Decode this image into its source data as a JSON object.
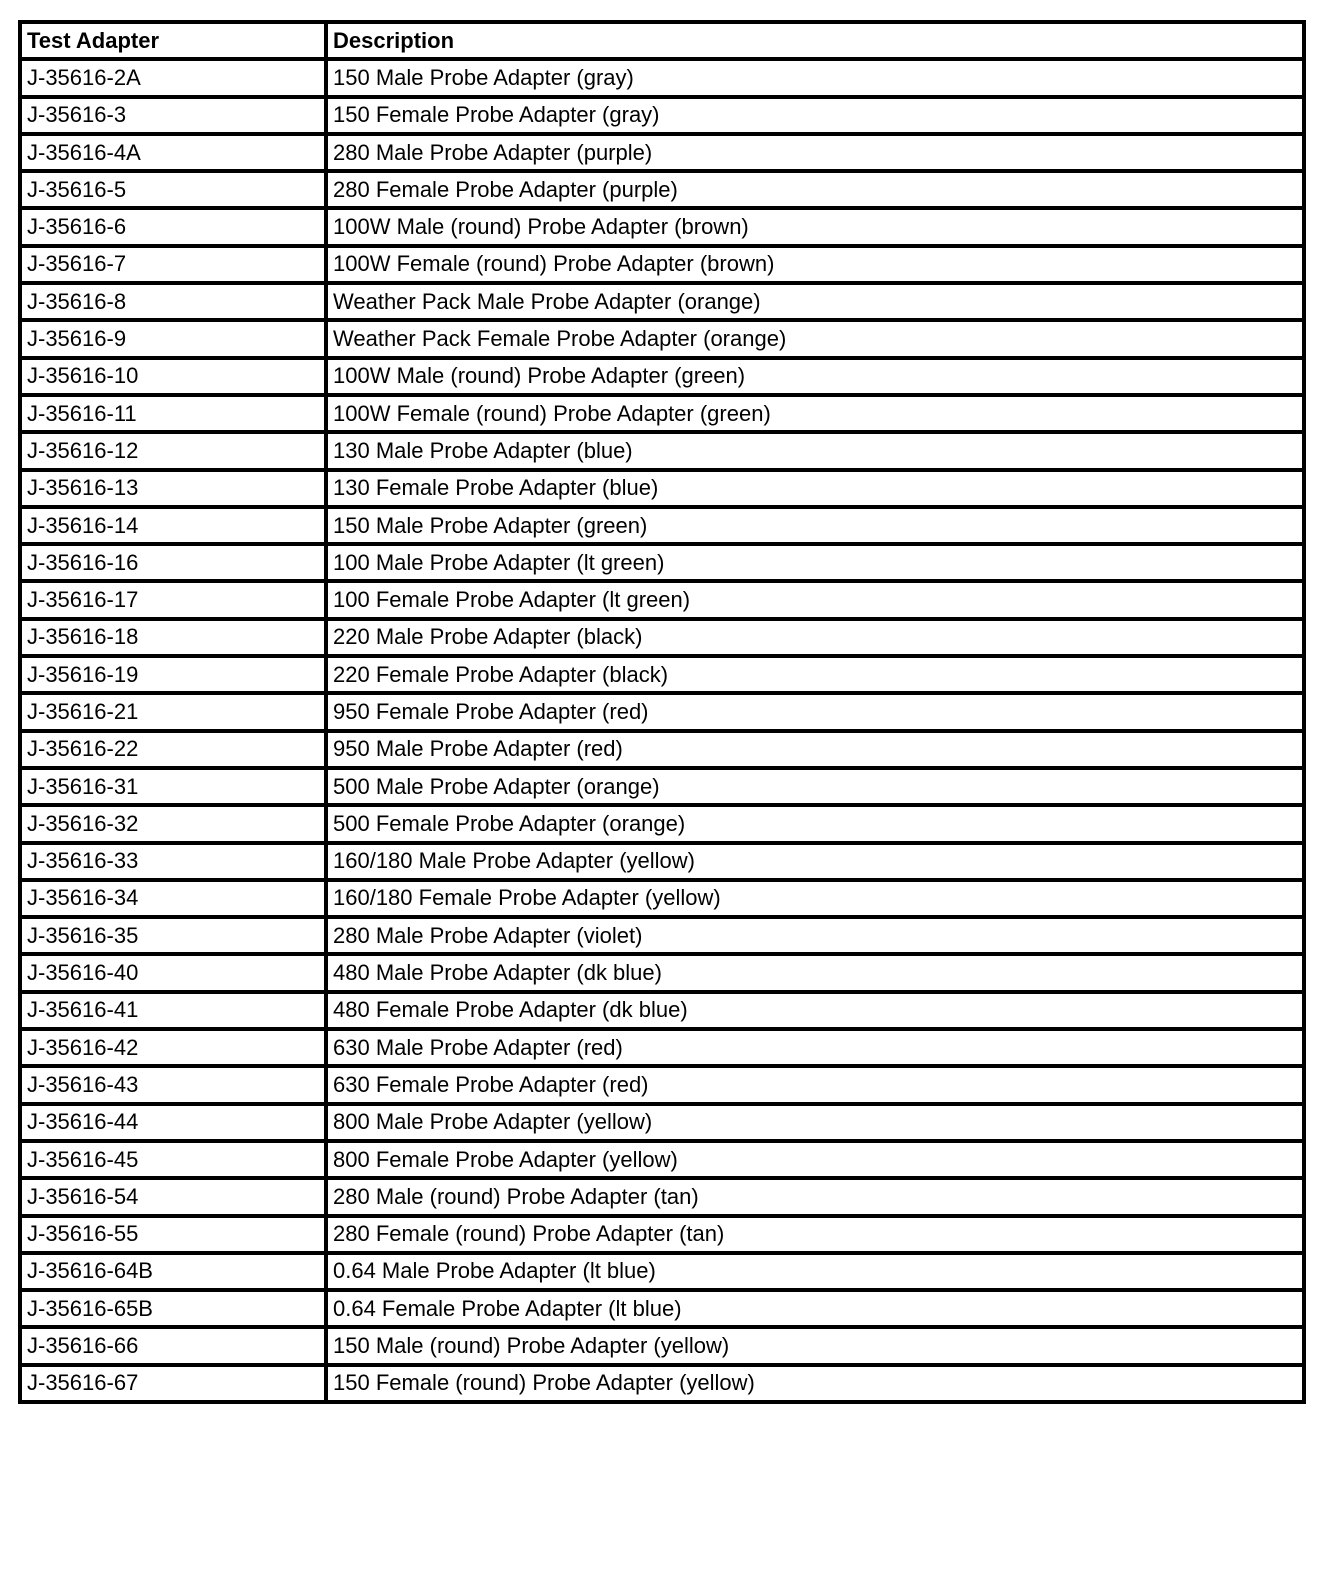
{
  "table": {
    "headers": [
      "Test Adapter",
      "Description"
    ],
    "rows": [
      [
        "J-35616-2A",
        "150 Male Probe Adapter (gray)"
      ],
      [
        "J-35616-3",
        "150 Female Probe Adapter (gray)"
      ],
      [
        "J-35616-4A",
        "280 Male Probe Adapter (purple)"
      ],
      [
        "J-35616-5",
        "280 Female Probe Adapter (purple)"
      ],
      [
        "J-35616-6",
        "100W Male (round) Probe Adapter (brown)"
      ],
      [
        "J-35616-7",
        "100W Female (round) Probe Adapter (brown)"
      ],
      [
        "J-35616-8",
        "Weather Pack Male Probe Adapter (orange)"
      ],
      [
        "J-35616-9",
        "Weather Pack Female Probe Adapter (orange)"
      ],
      [
        "J-35616-10",
        "100W Male (round) Probe Adapter (green)"
      ],
      [
        "J-35616-11",
        "100W Female (round) Probe Adapter (green)"
      ],
      [
        "J-35616-12",
        "130 Male Probe Adapter (blue)"
      ],
      [
        "J-35616-13",
        "130 Female Probe Adapter (blue)"
      ],
      [
        "J-35616-14",
        "150 Male Probe Adapter (green)"
      ],
      [
        "J-35616-16",
        "100 Male Probe Adapter (lt green)"
      ],
      [
        "J-35616-17",
        "100 Female Probe Adapter (lt green)"
      ],
      [
        "J-35616-18",
        "220 Male Probe Adapter (black)"
      ],
      [
        "J-35616-19",
        "220 Female Probe Adapter (black)"
      ],
      [
        "J-35616-21",
        "950 Female Probe Adapter (red)"
      ],
      [
        "J-35616-22",
        "950 Male Probe Adapter (red)"
      ],
      [
        "J-35616-31",
        "500 Male Probe Adapter (orange)"
      ],
      [
        "J-35616-32",
        "500 Female Probe Adapter (orange)"
      ],
      [
        "J-35616-33",
        "160/180 Male Probe Adapter (yellow)"
      ],
      [
        "J-35616-34",
        "160/180 Female Probe Adapter (yellow)"
      ],
      [
        "J-35616-35",
        "280 Male Probe Adapter (violet)"
      ],
      [
        "J-35616-40",
        "480 Male Probe Adapter (dk blue)"
      ],
      [
        "J-35616-41",
        "480 Female Probe Adapter (dk blue)"
      ],
      [
        "J-35616-42",
        "630 Male Probe Adapter (red)"
      ],
      [
        "J-35616-43",
        "630 Female Probe Adapter (red)"
      ],
      [
        "J-35616-44",
        "800 Male Probe Adapter (yellow)"
      ],
      [
        "J-35616-45",
        "800 Female Probe Adapter (yellow)"
      ],
      [
        "J-35616-54",
        "280 Male (round) Probe Adapter (tan)"
      ],
      [
        "J-35616-55",
        "280 Female (round) Probe Adapter (tan)"
      ],
      [
        "J-35616-64B",
        "0.64 Male Probe Adapter (lt blue)"
      ],
      [
        "J-35616-65B",
        "0.64 Female Probe Adapter (lt blue)"
      ],
      [
        "J-35616-66",
        "150 Male (round) Probe Adapter (yellow)"
      ],
      [
        "J-35616-67",
        "150 Female (round) Probe Adapter (yellow)"
      ]
    ]
  }
}
